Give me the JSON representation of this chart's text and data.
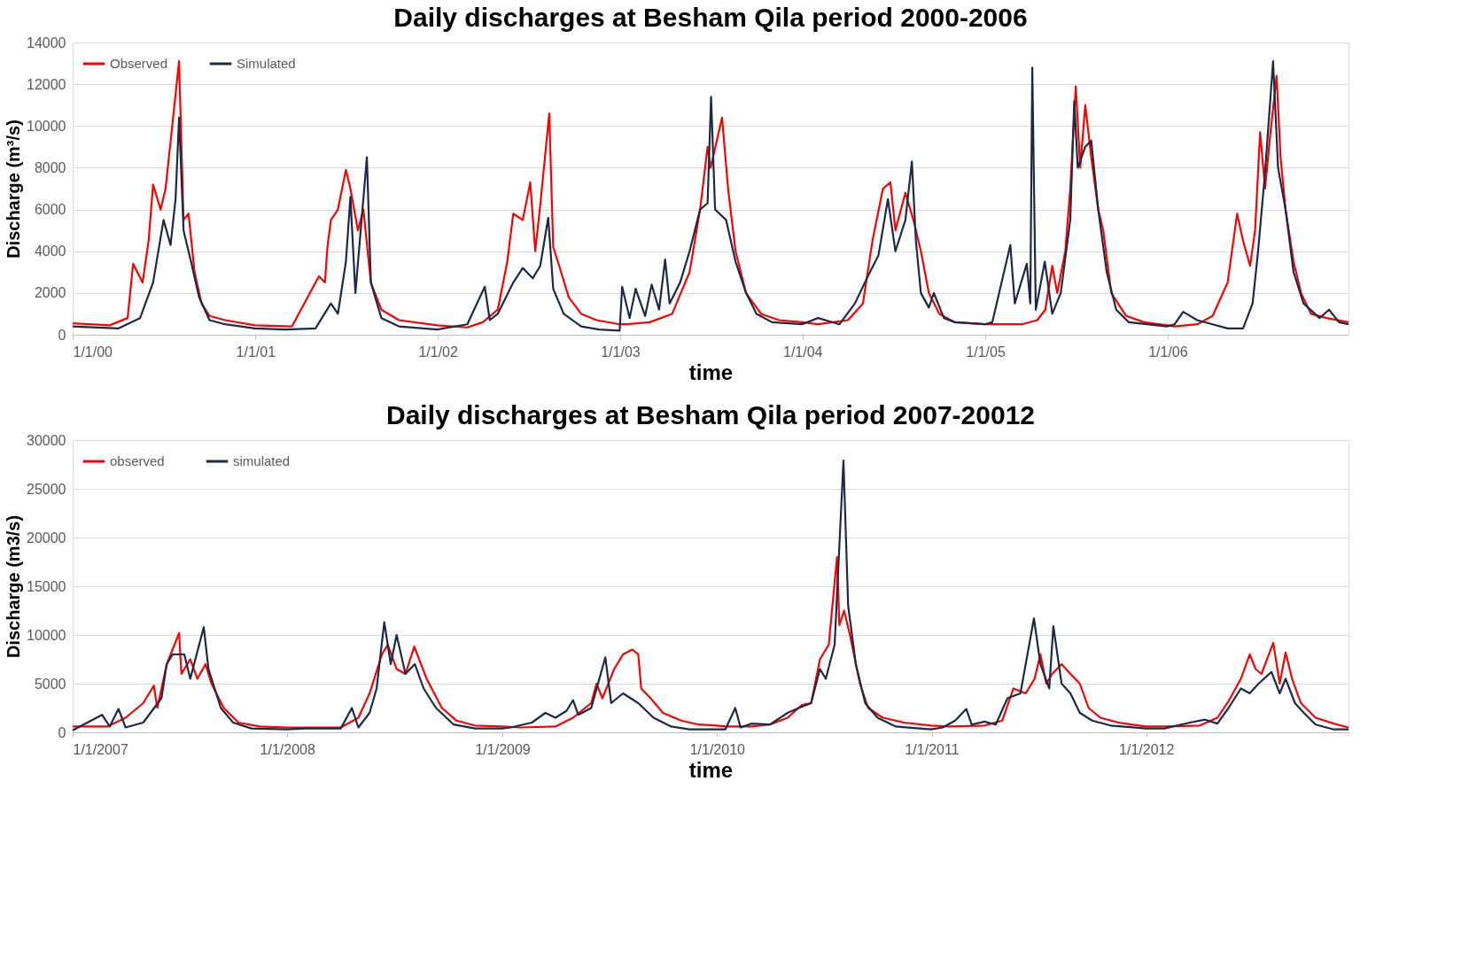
{
  "chart_data": [
    {
      "type": "line",
      "title": "Daily discharges at Besham Qila period 2000-2006",
      "xlabel": "time",
      "ylabel": "Discharge (m³/s)",
      "legend": "top left",
      "grid": "y",
      "marker": "none",
      "line_style": "solid",
      "xlim": [
        "2000-01-01",
        "2006-12-29"
      ],
      "ylim": [
        0,
        14000
      ],
      "yticks": [
        0,
        2000,
        4000,
        6000,
        8000,
        10000,
        12000,
        14000
      ],
      "xticks": [
        {
          "value": "2000-01-01",
          "label": "1/1/00"
        },
        {
          "value": "2001-01-01",
          "label": "1/1/01"
        },
        {
          "value": "2002-01-01",
          "label": "1/1/02"
        },
        {
          "value": "2003-01-01",
          "label": "1/1/03"
        },
        {
          "value": "2004-01-01",
          "label": "1/1/04"
        },
        {
          "value": "2005-01-01",
          "label": "1/1/05"
        },
        {
          "value": "2006-01-01",
          "label": "1/1/06"
        }
      ],
      "series": [
        {
          "name": "Observed",
          "color": "#ff0000",
          "x": [
            "2000-01-01",
            "2000-03-15",
            "2000-04-20",
            "2000-05-01",
            "2000-05-20",
            "2000-06-01",
            "2000-06-10",
            "2000-06-25",
            "2000-07-05",
            "2000-08-01",
            "2000-08-10",
            "2000-08-20",
            "2000-09-01",
            "2000-09-15",
            "2000-10-01",
            "2000-11-01",
            "2000-12-31",
            "2001-03-15",
            "2001-05-08",
            "2001-05-20",
            "2001-05-25",
            "2001-06-01",
            "2001-06-15",
            "2001-07-01",
            "2001-07-10",
            "2001-07-25",
            "2001-08-05",
            "2001-08-20",
            "2001-09-10",
            "2001-10-15",
            "2001-12-31",
            "2002-03-01",
            "2002-04-01",
            "2002-05-01",
            "2002-05-20",
            "2002-06-01",
            "2002-06-20",
            "2002-07-05",
            "2002-07-15",
            "2002-07-25",
            "2002-08-12",
            "2002-08-20",
            "2002-09-01",
            "2002-09-20",
            "2002-10-15",
            "2002-11-15",
            "2002-12-31",
            "2003-01-15",
            "2003-03-01",
            "2003-04-15",
            "2003-05-20",
            "2003-06-10",
            "2003-06-25",
            "2003-07-01",
            "2003-07-24",
            "2003-08-05",
            "2003-08-20",
            "2003-09-10",
            "2003-10-10",
            "2003-11-15",
            "2003-12-31",
            "2004-02-01",
            "2004-04-01",
            "2004-05-01",
            "2004-05-20",
            "2004-06-10",
            "2004-06-25",
            "2004-07-05",
            "2004-07-25",
            "2004-08-10",
            "2004-08-25",
            "2004-09-10",
            "2004-10-01",
            "2004-11-01",
            "2004-12-31",
            "2005-02-01",
            "2005-03-15",
            "2005-04-15",
            "2005-05-01",
            "2005-05-15",
            "2005-05-25",
            "2005-06-10",
            "2005-06-20",
            "2005-07-01",
            "2005-07-10",
            "2005-07-20",
            "2005-08-01",
            "2005-08-15",
            "2005-08-25",
            "2005-09-10",
            "2005-10-10",
            "2005-11-15",
            "2005-12-31",
            "2006-01-15",
            "2006-03-01",
            "2006-04-01",
            "2006-05-01",
            "2006-05-20",
            "2006-06-01",
            "2006-06-15",
            "2006-06-25",
            "2006-07-05",
            "2006-07-15",
            "2006-07-25",
            "2006-08-07",
            "2006-08-15",
            "2006-08-25",
            "2006-09-10",
            "2006-09-25",
            "2006-10-15",
            "2006-11-15",
            "2006-12-29"
          ],
          "values": [
            550,
            450,
            800,
            3400,
            2500,
            4500,
            7200,
            6000,
            7000,
            13100,
            5500,
            5800,
            3000,
            1500,
            900,
            700,
            450,
            400,
            2800,
            2500,
            4200,
            5500,
            6000,
            7900,
            7000,
            5000,
            6000,
            2500,
            1200,
            700,
            450,
            350,
            600,
            1200,
            3500,
            5800,
            5500,
            7300,
            4000,
            6200,
            10600,
            4200,
            3300,
            1800,
            1000,
            700,
            500,
            500,
            600,
            1000,
            3000,
            6000,
            9000,
            8000,
            10400,
            7000,
            4000,
            2000,
            1000,
            700,
            600,
            500,
            700,
            1500,
            4500,
            7000,
            7300,
            5000,
            6800,
            5500,
            4000,
            2000,
            1000,
            600,
            500,
            500,
            500,
            700,
            1200,
            3300,
            2000,
            4000,
            7000,
            11900,
            8000,
            11000,
            8500,
            6000,
            5000,
            2000,
            900,
            600,
            450,
            400,
            500,
            900,
            2500,
            5800,
            4500,
            3300,
            5000,
            9700,
            7000,
            9500,
            12400,
            8500,
            6000,
            3500,
            2000,
            1000,
            800,
            600
          ]
        },
        {
          "name": "Simulated",
          "color": "#1b2a47",
          "x": [
            "2000-01-01",
            "2000-04-01",
            "2000-05-15",
            "2000-06-10",
            "2000-07-01",
            "2000-07-15",
            "2000-07-25",
            "2000-08-01",
            "2000-08-10",
            "2000-08-25",
            "2000-09-10",
            "2000-10-01",
            "2000-11-01",
            "2000-12-31",
            "2001-03-01",
            "2001-05-01",
            "2001-06-01",
            "2001-06-15",
            "2001-07-01",
            "2001-07-10",
            "2001-07-20",
            "2001-08-12",
            "2001-08-20",
            "2001-09-10",
            "2001-10-15",
            "2001-12-31",
            "2002-03-01",
            "2002-04-05",
            "2002-04-15",
            "2002-05-01",
            "2002-06-01",
            "2002-06-20",
            "2002-07-10",
            "2002-07-25",
            "2002-08-10",
            "2002-08-20",
            "2002-09-10",
            "2002-10-15",
            "2002-11-20",
            "2002-12-31",
            "2003-01-05",
            "2003-01-20",
            "2003-02-01",
            "2003-02-20",
            "2003-03-05",
            "2003-03-20",
            "2003-04-01",
            "2003-04-10",
            "2003-05-01",
            "2003-05-20",
            "2003-06-10",
            "2003-06-25",
            "2003-07-02",
            "2003-07-10",
            "2003-08-01",
            "2003-08-20",
            "2003-09-10",
            "2003-10-01",
            "2003-11-01",
            "2003-12-31",
            "2004-02-01",
            "2004-03-15",
            "2004-04-15",
            "2004-05-15",
            "2004-06-01",
            "2004-06-20",
            "2004-07-05",
            "2004-07-25",
            "2004-08-07",
            "2004-08-15",
            "2004-08-25",
            "2004-09-10",
            "2004-09-20",
            "2004-10-10",
            "2004-11-01",
            "2004-12-31",
            "2005-01-15",
            "2005-02-20",
            "2005-03-01",
            "2005-03-25",
            "2005-04-01",
            "2005-04-05",
            "2005-04-12",
            "2005-04-30",
            "2005-05-15",
            "2005-06-01",
            "2005-06-20",
            "2005-06-28",
            "2005-07-05",
            "2005-07-20",
            "2005-08-01",
            "2005-08-15",
            "2005-09-01",
            "2005-09-20",
            "2005-10-15",
            "2005-12-31",
            "2006-01-15",
            "2006-02-01",
            "2006-03-01",
            "2006-04-01",
            "2006-05-01",
            "2006-06-01",
            "2006-06-20",
            "2006-07-01",
            "2006-07-15",
            "2006-07-31",
            "2006-08-10",
            "2006-08-25",
            "2006-09-10",
            "2006-09-30",
            "2006-11-01",
            "2006-11-20",
            "2006-12-10",
            "2006-12-29"
          ],
          "values": [
            400,
            300,
            800,
            2500,
            5500,
            4300,
            6500,
            10400,
            5000,
            3500,
            1800,
            700,
            500,
            300,
            250,
            300,
            1500,
            1000,
            3500,
            6600,
            2000,
            8500,
            2500,
            800,
            400,
            250,
            500,
            2300,
            700,
            1000,
            2500,
            3200,
            2700,
            3300,
            5600,
            2200,
            1000,
            400,
            250,
            200,
            2300,
            800,
            2200,
            900,
            2400,
            1200,
            3600,
            1500,
            2500,
            4000,
            6000,
            6300,
            11400,
            6000,
            5500,
            3500,
            2000,
            1000,
            600,
            500,
            800,
            500,
            1500,
            3000,
            3800,
            6500,
            4000,
            5500,
            8300,
            4500,
            2000,
            1300,
            2000,
            800,
            600,
            500,
            600,
            4300,
            1500,
            3400,
            1500,
            12800,
            1200,
            3500,
            1000,
            2000,
            5500,
            11200,
            8000,
            9000,
            9300,
            6000,
            3000,
            1200,
            600,
            400,
            500,
            1100,
            700,
            500,
            300,
            300,
            1500,
            4000,
            7800,
            13100,
            8000,
            6000,
            3000,
            1500,
            800,
            1200,
            600,
            500
          ]
        }
      ]
    },
    {
      "type": "line",
      "title": "Daily discharges at Besham Qila period 2007-20012",
      "xlabel": "time",
      "ylabel": "Discharge (m3/s)",
      "legend": "top left",
      "grid": "y",
      "marker": "none",
      "line_style": "solid",
      "xlim": [
        "2007-01-01",
        "2012-12-10"
      ],
      "ylim": [
        0,
        30000
      ],
      "yticks": [
        0,
        5000,
        10000,
        15000,
        20000,
        25000,
        30000
      ],
      "xticks": [
        {
          "value": "2007-01-01",
          "label": "1/1/2007"
        },
        {
          "value": "2008-01-01",
          "label": "1/1/2008"
        },
        {
          "value": "2009-01-01",
          "label": "1/1/2009"
        },
        {
          "value": "2010-01-01",
          "label": "1/1/2010"
        },
        {
          "value": "2011-01-01",
          "label": "1/1/2011"
        },
        {
          "value": "2012-01-01",
          "label": "1/1/2012"
        }
      ],
      "series": [
        {
          "name": "observed",
          "color": "#ff0000",
          "x": [
            "2007-01-01",
            "2007-03-01",
            "2007-04-01",
            "2007-05-01",
            "2007-05-19",
            "2007-05-25",
            "2007-06-10",
            "2007-07-01",
            "2007-07-05",
            "2007-07-20",
            "2007-08-01",
            "2007-08-15",
            "2007-08-25",
            "2007-09-15",
            "2007-10-10",
            "2007-11-15",
            "2007-12-31",
            "2008-02-01",
            "2008-04-01",
            "2008-05-01",
            "2008-05-20",
            "2008-06-10",
            "2008-06-20",
            "2008-07-05",
            "2008-07-20",
            "2008-08-04",
            "2008-08-25",
            "2008-09-20",
            "2008-10-15",
            "2008-11-15",
            "2008-12-31",
            "2009-02-01",
            "2009-04-01",
            "2009-05-01",
            "2009-06-01",
            "2009-06-10",
            "2009-06-20",
            "2009-07-10",
            "2009-07-25",
            "2009-08-10",
            "2009-08-20",
            "2009-08-25",
            "2009-09-10",
            "2009-10-01",
            "2009-11-01",
            "2009-12-01",
            "2009-12-31",
            "2010-01-15",
            "2010-03-01",
            "2010-04-01",
            "2010-05-01",
            "2010-05-25",
            "2010-06-10",
            "2010-06-25",
            "2010-07-10",
            "2010-07-24",
            "2010-07-28",
            "2010-08-05",
            "2010-08-15",
            "2010-09-01",
            "2010-09-15",
            "2010-10-10",
            "2010-11-15",
            "2010-12-31",
            "2011-02-01",
            "2011-04-01",
            "2011-05-01",
            "2011-05-20",
            "2011-06-10",
            "2011-06-25",
            "2011-07-05",
            "2011-07-15",
            "2011-07-25",
            "2011-08-10",
            "2011-08-25",
            "2011-09-10",
            "2011-09-25",
            "2011-10-15",
            "2011-11-15",
            "2011-12-31",
            "2012-02-01",
            "2012-04-01",
            "2012-05-01",
            "2012-05-20",
            "2012-06-10",
            "2012-06-25",
            "2012-07-05",
            "2012-07-15",
            "2012-08-04",
            "2012-08-15",
            "2012-08-25",
            "2012-09-05",
            "2012-09-20",
            "2012-10-15",
            "2012-11-15",
            "2012-12-10"
          ],
          "values": [
            600,
            600,
            1500,
            3000,
            4800,
            2500,
            7000,
            10200,
            6000,
            7500,
            5500,
            7000,
            5000,
            2500,
            1000,
            600,
            500,
            500,
            500,
            1500,
            4000,
            8000,
            9000,
            6500,
            6000,
            8800,
            5500,
            2500,
            1200,
            700,
            600,
            500,
            600,
            1500,
            3000,
            5000,
            3500,
            6500,
            8000,
            8500,
            8000,
            4500,
            3500,
            2000,
            1200,
            800,
            700,
            600,
            600,
            800,
            1500,
            2800,
            3000,
            7500,
            9000,
            18000,
            11000,
            12500,
            10000,
            5000,
            2500,
            1500,
            1000,
            700,
            600,
            700,
            1200,
            4500,
            4000,
            5500,
            8000,
            5000,
            6000,
            7000,
            6000,
            5000,
            2500,
            1500,
            1000,
            600,
            600,
            700,
            1500,
            3200,
            5500,
            8000,
            6500,
            6000,
            9200,
            5000,
            8200,
            5500,
            3000,
            1500,
            900,
            500
          ]
        },
        {
          "name": "simulated",
          "color": "#1b2a47",
          "x": [
            "2007-01-01",
            "2007-02-20",
            "2007-03-05",
            "2007-03-20",
            "2007-04-01",
            "2007-05-01",
            "2007-06-01",
            "2007-06-10",
            "2007-06-20",
            "2007-07-10",
            "2007-07-20",
            "2007-08-12",
            "2007-08-20",
            "2007-09-10",
            "2007-10-01",
            "2007-11-01",
            "2007-12-31",
            "2008-02-01",
            "2008-04-01",
            "2008-04-20",
            "2008-05-01",
            "2008-05-20",
            "2008-06-01",
            "2008-06-14",
            "2008-06-25",
            "2008-07-05",
            "2008-07-20",
            "2008-08-05",
            "2008-08-20",
            "2008-09-10",
            "2008-10-10",
            "2008-11-15",
            "2008-12-31",
            "2009-01-15",
            "2009-02-20",
            "2009-03-15",
            "2009-04-01",
            "2009-04-20",
            "2009-05-01",
            "2009-05-10",
            "2009-06-01",
            "2009-06-25",
            "2009-07-05",
            "2009-07-25",
            "2009-08-20",
            "2009-09-15",
            "2009-10-15",
            "2009-11-15",
            "2009-12-31",
            "2010-01-15",
            "2010-02-01",
            "2010-02-10",
            "2010-03-01",
            "2010-04-01",
            "2010-05-01",
            "2010-05-20",
            "2010-06-10",
            "2010-06-25",
            "2010-07-05",
            "2010-07-20",
            "2010-08-04",
            "2010-08-12",
            "2010-08-25",
            "2010-09-10",
            "2010-10-01",
            "2010-11-01",
            "2010-12-31",
            "2011-01-20",
            "2011-02-10",
            "2011-03-01",
            "2011-03-10",
            "2011-04-01",
            "2011-04-20",
            "2011-05-10",
            "2011-06-01",
            "2011-06-24",
            "2011-07-05",
            "2011-07-20",
            "2011-07-27",
            "2011-08-10",
            "2011-08-25",
            "2011-09-10",
            "2011-10-01",
            "2011-11-01",
            "2011-12-31",
            "2012-02-01",
            "2012-03-15",
            "2012-04-10",
            "2012-05-01",
            "2012-05-20",
            "2012-06-10",
            "2012-06-25",
            "2012-07-10",
            "2012-08-01",
            "2012-08-15",
            "2012-08-25",
            "2012-09-10",
            "2012-09-25",
            "2012-10-15",
            "2012-11-15",
            "2012-12-10"
          ],
          "values": [
            200,
            1800,
            600,
            2400,
            500,
            1000,
            3500,
            7000,
            8000,
            8000,
            5500,
            10800,
            6500,
            2500,
            1000,
            400,
            300,
            400,
            400,
            2500,
            500,
            2000,
            4500,
            11300,
            7000,
            10000,
            6000,
            7000,
            4500,
            2500,
            800,
            400,
            400,
            500,
            1000,
            2000,
            1500,
            2200,
            3300,
            1800,
            2500,
            7700,
            3000,
            4000,
            3000,
            1500,
            600,
            300,
            300,
            300,
            2500,
            500,
            900,
            800,
            2000,
            2500,
            3000,
            6500,
            5500,
            9000,
            27900,
            13000,
            7000,
            3000,
            1500,
            600,
            300,
            500,
            1200,
            2400,
            800,
            1100,
            800,
            3500,
            4000,
            11700,
            7000,
            4500,
            10900,
            5000,
            4000,
            2000,
            1200,
            700,
            400,
            400,
            1000,
            1300,
            900,
            2500,
            4500,
            4000,
            5000,
            6200,
            4000,
            5500,
            3000,
            2000,
            800,
            300,
            300
          ]
        }
      ]
    }
  ]
}
